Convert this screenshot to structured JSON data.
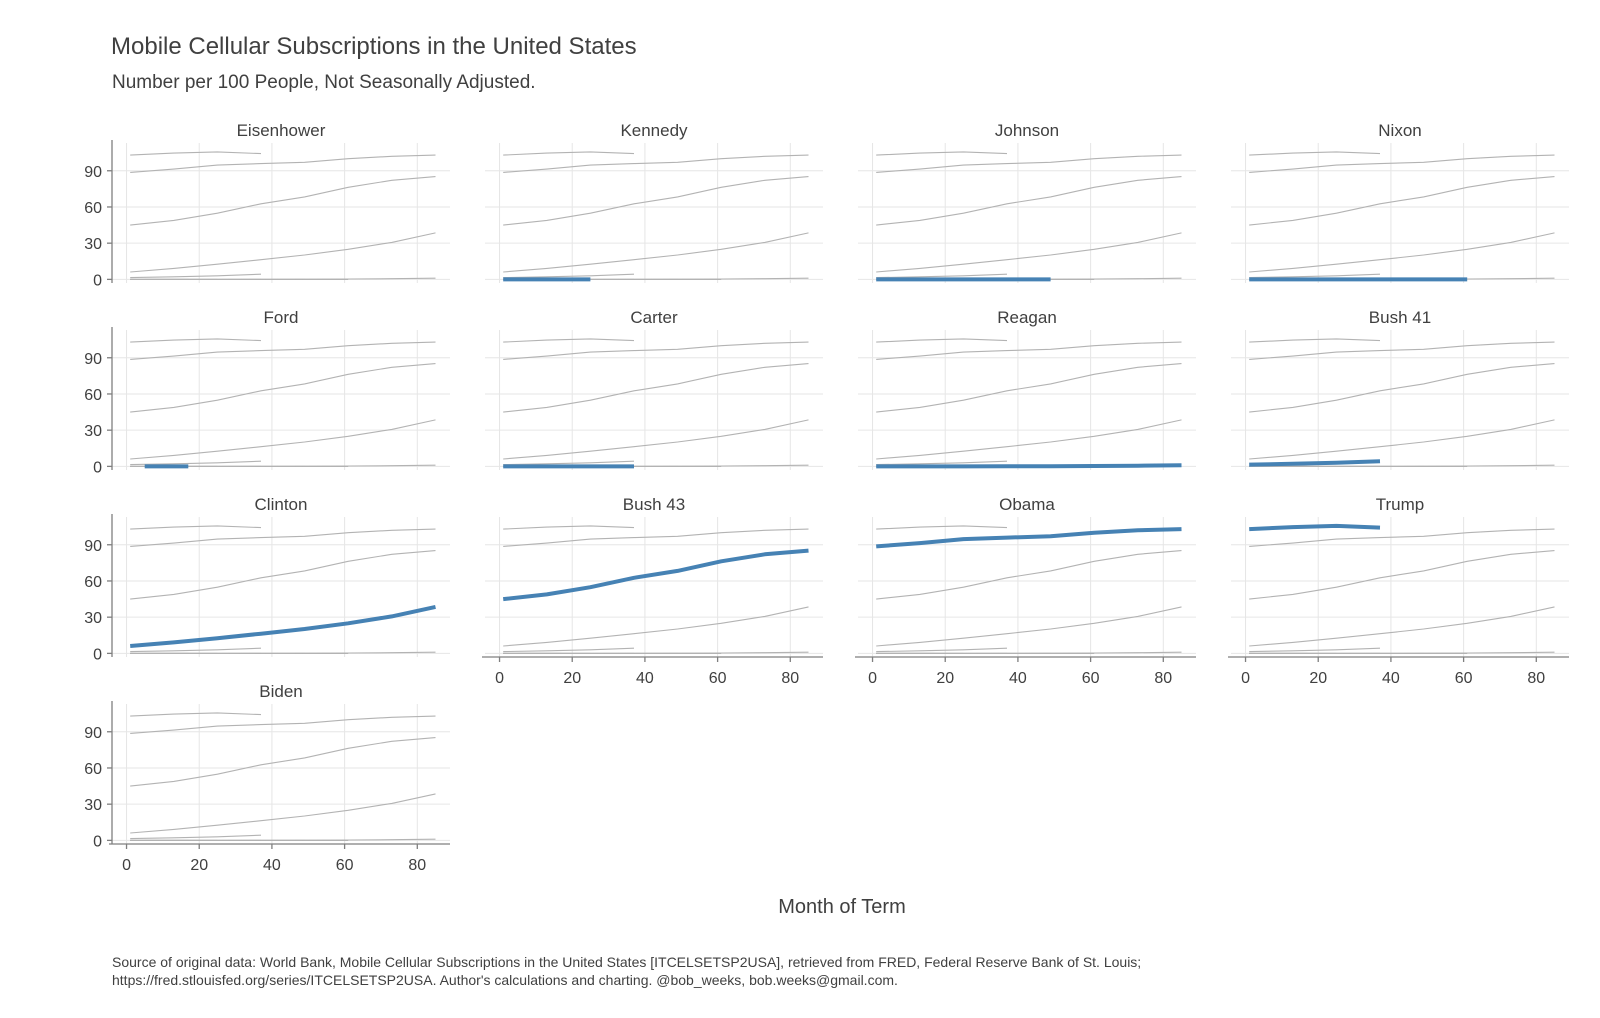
{
  "chart_data": {
    "type": "line",
    "title": "Mobile Cellular Subscriptions in the United States",
    "subtitle": "Number per 100 People, Not Seasonally Adjusted.",
    "xlabel": "Month of Term",
    "ylabel": "",
    "source_line1": "Source of original data: World Bank, Mobile Cellular Subscriptions in the United States [ITCELSETSP2USA], retrieved from FRED, Federal Reserve Bank of St. Louis;",
    "source_line2": "https://fred.stlouisfed.org/series/ITCELSETSP2USA. Author's calculations and charting. @bob_weeks, bob.weeks@gmail.com.",
    "xlim": [
      -4,
      89
    ],
    "ylim": [
      -3,
      113
    ],
    "x_ticks": [
      0,
      20,
      40,
      60,
      80
    ],
    "y_ticks": [
      0,
      30,
      60,
      90
    ],
    "grid": true,
    "highlight_color": "#4682b4",
    "background_line_color": "#b3b3b3",
    "grid_color": "#e6e6e6",
    "axis_color": "#7f7f7f",
    "series": [
      {
        "name": "Eisenhower",
        "x": [],
        "y": []
      },
      {
        "name": "Kennedy",
        "x": [
          1,
          25
        ],
        "y": [
          0,
          0
        ]
      },
      {
        "name": "Johnson",
        "x": [
          1,
          13,
          25,
          37,
          49
        ],
        "y": [
          0,
          0,
          0,
          0,
          0
        ]
      },
      {
        "name": "Nixon",
        "x": [
          1,
          13,
          25,
          37,
          49,
          61
        ],
        "y": [
          0,
          0,
          0,
          0,
          0,
          0
        ]
      },
      {
        "name": "Ford",
        "x": [
          5,
          17
        ],
        "y": [
          0,
          0
        ]
      },
      {
        "name": "Carter",
        "x": [
          1,
          13,
          25,
          37
        ],
        "y": [
          0,
          0,
          0,
          0
        ]
      },
      {
        "name": "Reagan",
        "x": [
          1,
          13,
          25,
          37,
          49,
          61,
          73,
          85
        ],
        "y": [
          0,
          0,
          0,
          0.04,
          0.14,
          0.28,
          0.6,
          1.0
        ]
      },
      {
        "name": "Bush 41",
        "x": [
          1,
          13,
          25,
          37
        ],
        "y": [
          1.5,
          2.1,
          3.0,
          4.3
        ]
      },
      {
        "name": "Clinton",
        "x": [
          1,
          13,
          25,
          37,
          49,
          61,
          73,
          85
        ],
        "y": [
          6.1,
          9.1,
          12.6,
          16.3,
          20.2,
          24.9,
          30.6,
          38.5
        ]
      },
      {
        "name": "Bush 43",
        "x": [
          1,
          13,
          25,
          37,
          49,
          61,
          73,
          85
        ],
        "y": [
          45.0,
          48.9,
          54.8,
          62.6,
          68.3,
          76.3,
          82.1,
          85.2
        ]
      },
      {
        "name": "Obama",
        "x": [
          1,
          13,
          25,
          37,
          49,
          61,
          73,
          85
        ],
        "y": [
          88.6,
          91.4,
          94.7,
          95.9,
          97.0,
          100.0,
          102.0,
          103.0
        ]
      },
      {
        "name": "Trump",
        "x": [
          1,
          13,
          25,
          37
        ],
        "y": [
          103.0,
          104.6,
          105.6,
          104.2
        ]
      },
      {
        "name": "Biden",
        "x": [],
        "y": []
      }
    ]
  }
}
